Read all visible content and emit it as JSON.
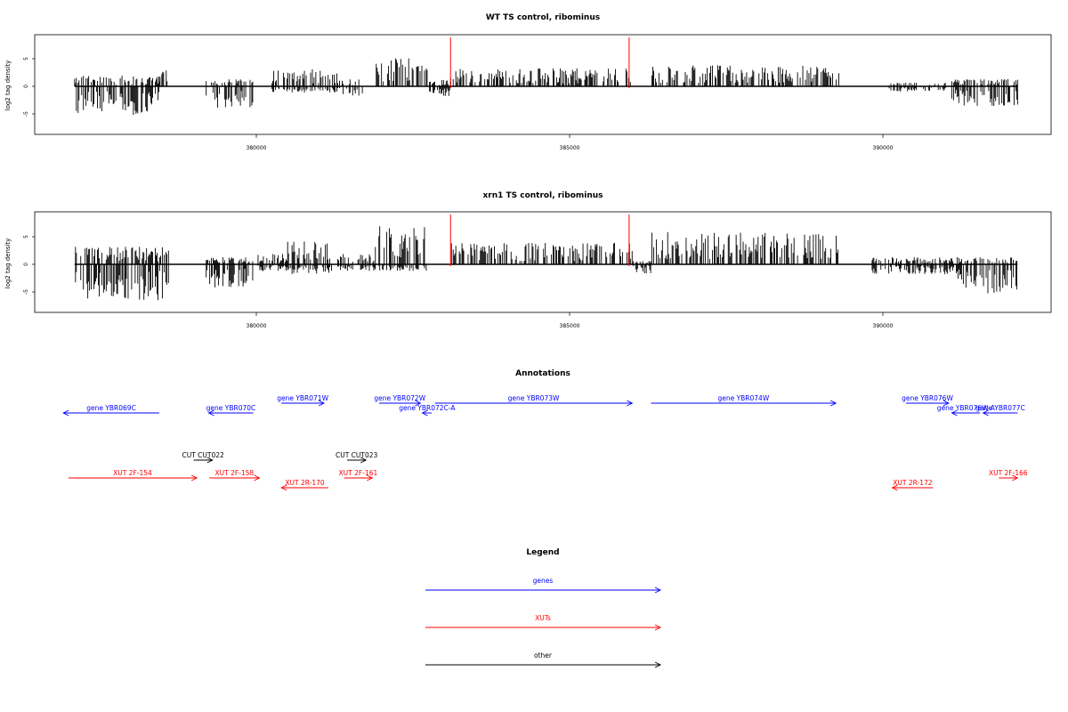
{
  "colors": {
    "gene": "#0000ff",
    "xut": "#ff0000",
    "other": "#000000",
    "marker": "#ff0000",
    "bar": "#000000"
  },
  "panels": [
    {
      "title": "WT TS control, ribominus",
      "ylabel": "log2 tag density"
    },
    {
      "title": "xrn1 TS control, ribominus",
      "ylabel": "log2 tag density"
    }
  ],
  "annotations": {
    "title": "Annotations",
    "items": [
      {
        "label": "gene YBR069C",
        "type": "gene",
        "start": 378450,
        "end": 376920,
        "row": 1
      },
      {
        "label": "gene YBR070C",
        "type": "gene",
        "start": 379950,
        "end": 379240,
        "row": 1
      },
      {
        "label": "gene YBR071W",
        "type": "gene",
        "start": 380400,
        "end": 381080,
        "row": 0
      },
      {
        "label": "gene YBR072W",
        "type": "gene",
        "start": 381960,
        "end": 382620,
        "row": 0
      },
      {
        "label": "gene YBR072C-A",
        "type": "gene",
        "start": 382800,
        "end": 382650,
        "row": 1
      },
      {
        "label": "gene YBR073W",
        "type": "gene",
        "start": 382850,
        "end": 386000,
        "row": 0
      },
      {
        "label": "gene YBR074W",
        "type": "gene",
        "start": 386300,
        "end": 389250,
        "row": 0
      },
      {
        "label": "gene YBR076W",
        "type": "gene",
        "start": 390370,
        "end": 391050,
        "row": 0
      },
      {
        "label": "gene YBR076W-A",
        "type": "gene",
        "start": 391550,
        "end": 391100,
        "row": 1
      },
      {
        "label": "gene YBR077C",
        "type": "gene",
        "start": 392150,
        "end": 391600,
        "row": 1
      },
      {
        "label": "CUT CUT022",
        "type": "other",
        "start": 379000,
        "end": 379300,
        "row": 2
      },
      {
        "label": "CUT CUT023",
        "type": "other",
        "start": 381450,
        "end": 381750,
        "row": 2
      },
      {
        "label": "XUT 2F-154",
        "type": "xut",
        "start": 377000,
        "end": 379050,
        "row": 3
      },
      {
        "label": "XUT 2F-158",
        "type": "xut",
        "start": 379250,
        "end": 380050,
        "row": 3
      },
      {
        "label": "XUT 2R-170",
        "type": "xut",
        "start": 381150,
        "end": 380400,
        "row": 4
      },
      {
        "label": "XUT 2F-161",
        "type": "xut",
        "start": 381400,
        "end": 381850,
        "row": 3
      },
      {
        "label": "XUT 2R-172",
        "type": "xut",
        "start": 390800,
        "end": 390150,
        "row": 4
      },
      {
        "label": "XUT 2F-166",
        "type": "xut",
        "start": 391850,
        "end": 392150,
        "row": 3
      }
    ]
  },
  "legend": {
    "title": "Legend",
    "items": [
      {
        "label": "genes",
        "type": "gene"
      },
      {
        "label": "XUTs",
        "type": "xut"
      },
      {
        "label": "other",
        "type": "other"
      }
    ]
  },
  "chart_data": {
    "type": "bar",
    "x_ticks": [
      380000,
      385000,
      390000
    ],
    "y_ticks": [
      -5,
      0,
      5
    ],
    "xlim": [
      376500,
      392750
    ],
    "ylim": [
      -9,
      9
    ],
    "red_markers_x": [
      383100,
      385950
    ],
    "series": [
      {
        "name": "WT TS control, ribominus",
        "segments": [
          {
            "x": [
              377100,
              378450
            ],
            "pos": 1.5,
            "neg": -4.5
          },
          {
            "x": [
              378450,
              378600
            ],
            "pos": 2.5,
            "neg": 0
          },
          {
            "x": [
              379200,
              379950
            ],
            "pos": 1.0,
            "neg": -3.5
          },
          {
            "x": [
              380250,
              381300
            ],
            "pos": 2.5,
            "neg": -1.0
          },
          {
            "x": [
              381300,
              381700
            ],
            "pos": 1.0,
            "neg": -1.5
          },
          {
            "x": [
              381900,
              382750
            ],
            "pos": 4.0,
            "neg": 0
          },
          {
            "x": [
              382750,
              383100
            ],
            "pos": 1.0,
            "neg": -1.5
          },
          {
            "x": [
              383100,
              386000
            ],
            "pos": 2.5,
            "neg": 0
          },
          {
            "x": [
              386300,
              389300
            ],
            "pos": 3.0,
            "neg": 0
          },
          {
            "x": [
              390100,
              391000
            ],
            "pos": 0.5,
            "neg": -0.8
          },
          {
            "x": [
              391100,
              392150
            ],
            "pos": 1.0,
            "neg": -3.0
          }
        ]
      },
      {
        "name": "xrn1 TS control, ribominus",
        "segments": [
          {
            "x": [
              377100,
              378600
            ],
            "pos": 2.5,
            "neg": -5.5
          },
          {
            "x": [
              379200,
              379950
            ],
            "pos": 1.0,
            "neg": -3.5
          },
          {
            "x": [
              380000,
              380500
            ],
            "pos": 1.5,
            "neg": -1.0
          },
          {
            "x": [
              380500,
              381200
            ],
            "pos": 3.5,
            "neg": -1.5
          },
          {
            "x": [
              381300,
              381900
            ],
            "pos": 1.5,
            "neg": -1.0
          },
          {
            "x": [
              381900,
              382750
            ],
            "pos": 5.5,
            "neg": -1.0
          },
          {
            "x": [
              383100,
              386000
            ],
            "pos": 3.0,
            "neg": 0
          },
          {
            "x": [
              386000,
              386300
            ],
            "pos": 0.5,
            "neg": -1.5
          },
          {
            "x": [
              386300,
              389300
            ],
            "pos": 4.5,
            "neg": 0
          },
          {
            "x": [
              389800,
              391200
            ],
            "pos": 1.0,
            "neg": -1.5
          },
          {
            "x": [
              391200,
              392150
            ],
            "pos": 1.0,
            "neg": -4.5
          }
        ]
      }
    ]
  }
}
